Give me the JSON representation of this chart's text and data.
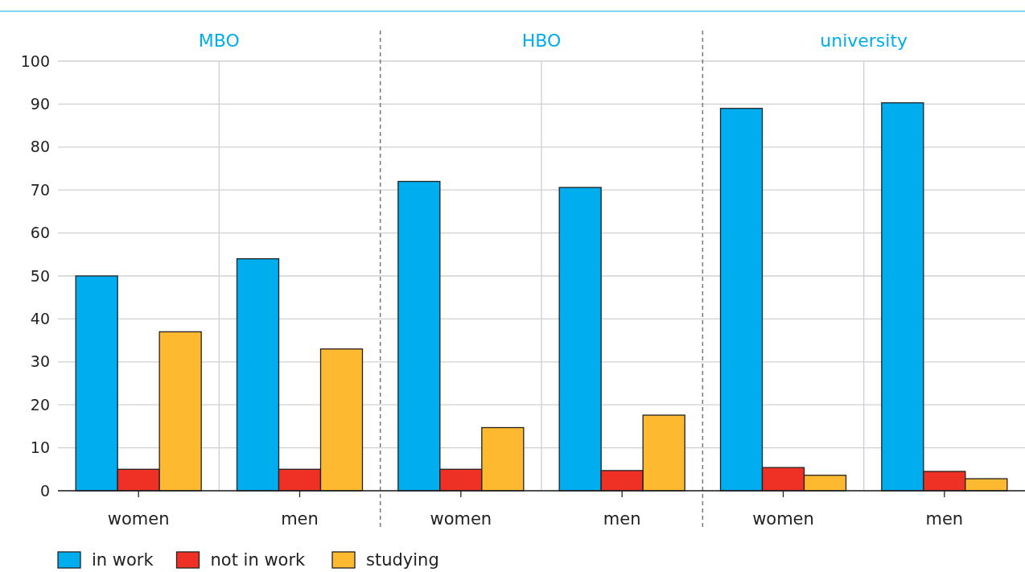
{
  "chart_data": {
    "type": "bar",
    "categories": [
      "women",
      "men",
      "women",
      "men",
      "women",
      "men"
    ],
    "series": [
      {
        "name": "in work",
        "color": "#00adee",
        "values": [
          50,
          54,
          72,
          70.6,
          89,
          90.3
        ]
      },
      {
        "name": "not in work",
        "color": "#ee3124",
        "values": [
          5,
          5,
          5,
          4.7,
          5.4,
          4.5
        ]
      },
      {
        "name": "studying",
        "color": "#fdb92f",
        "values": [
          37,
          33,
          14.7,
          17.6,
          3.6,
          2.8
        ]
      }
    ],
    "annotations": [
      "MBO",
      "HBO",
      "university"
    ],
    "ylim": [
      0,
      100
    ],
    "yticks": [
      0,
      10,
      20,
      30,
      40,
      50,
      60,
      70,
      80,
      90,
      100
    ],
    "grid": true,
    "legend": "bottom"
  }
}
